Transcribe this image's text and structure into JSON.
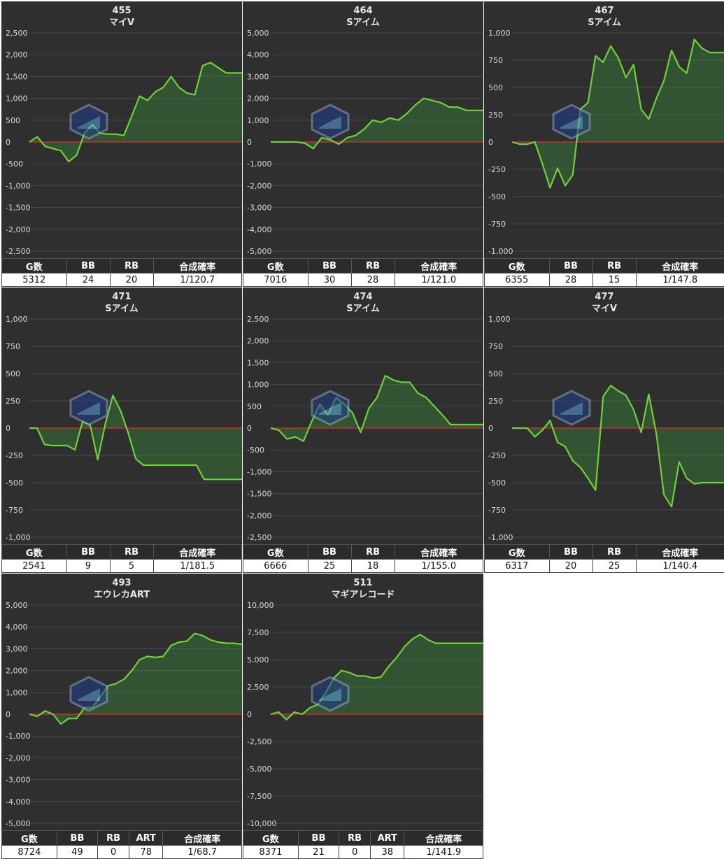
{
  "chart_data": [
    {
      "type": "area",
      "number": "455",
      "name": "マイV",
      "ylim": [
        -2500,
        2500
      ],
      "yticks": [
        2500,
        2000,
        1500,
        1000,
        500,
        0,
        -500,
        -1000,
        -1500,
        -2000,
        -2500
      ],
      "tick_labels": [
        "2,500",
        "2,000",
        "1,500",
        "1,000",
        "500",
        "0",
        "-500",
        "-1,000",
        "-1,500",
        "-2,000",
        "-2,500"
      ],
      "series": [
        {
          "values": [
            0,
            120,
            -100,
            -150,
            -200,
            -450,
            -300,
            200,
            400,
            200,
            180,
            180,
            150,
            600,
            1050,
            950,
            1150,
            1250,
            1500,
            1250,
            1120,
            1080,
            1750,
            1820,
            1700,
            1580,
            1580,
            1580
          ]
        }
      ],
      "stats_headers": [
        "G数",
        "BB",
        "RB",
        "合成確率"
      ],
      "stats_values": [
        "5312",
        "24",
        "20",
        "1/120.7"
      ]
    },
    {
      "type": "area",
      "number": "464",
      "name": "Sアイム",
      "ylim": [
        -5000,
        5000
      ],
      "yticks": [
        5000,
        4000,
        3000,
        2000,
        1000,
        0,
        -1000,
        -2000,
        -3000,
        -4000,
        -5000
      ],
      "tick_labels": [
        "5,000",
        "4,000",
        "3,000",
        "2,000",
        "1,000",
        "0",
        "-1,000",
        "-2,000",
        "-3,000",
        "-4,000",
        "-5,000"
      ],
      "series": [
        {
          "values": [
            0,
            0,
            0,
            0,
            -50,
            -300,
            200,
            100,
            -100,
            200,
            300,
            600,
            1000,
            900,
            1100,
            1000,
            1300,
            1700,
            2000,
            1900,
            1800,
            1600,
            1600,
            1450,
            1450,
            1450
          ]
        }
      ],
      "stats_headers": [
        "G数",
        "BB",
        "RB",
        "合成確率"
      ],
      "stats_values": [
        "7016",
        "30",
        "28",
        "1/121.0"
      ]
    },
    {
      "type": "area",
      "number": "467",
      "name": "Sアイム",
      "ylim": [
        -1000,
        1000
      ],
      "yticks": [
        1000,
        750,
        500,
        250,
        0,
        -250,
        -500,
        -750,
        -1000
      ],
      "tick_labels": [
        "1,000",
        "750",
        "500",
        "250",
        "0",
        "-250",
        "-500",
        "-750",
        "-1,000"
      ],
      "series": [
        {
          "values": [
            0,
            -20,
            -20,
            0,
            -200,
            -420,
            -240,
            -400,
            -300,
            300,
            360,
            790,
            730,
            880,
            770,
            590,
            710,
            300,
            210,
            400,
            560,
            840,
            690,
            630,
            940,
            860,
            820,
            820,
            820
          ]
        }
      ],
      "stats_headers": [
        "G数",
        "BB",
        "RB",
        "合成確率"
      ],
      "stats_values": [
        "6355",
        "28",
        "15",
        "1/147.8"
      ]
    },
    {
      "type": "area",
      "number": "471",
      "name": "Sアイム",
      "ylim": [
        -1000,
        1000
      ],
      "yticks": [
        1000,
        750,
        500,
        250,
        0,
        -250,
        -500,
        -750,
        -1000
      ],
      "tick_labels": [
        "1,000",
        "750",
        "500",
        "250",
        "0",
        "-250",
        "-500",
        "-750",
        "-1,000"
      ],
      "series": [
        {
          "values": [
            0,
            0,
            -150,
            -160,
            -160,
            -160,
            -200,
            60,
            30,
            -290,
            40,
            300,
            160,
            -40,
            -280,
            -340,
            -340,
            -340,
            -340,
            -340,
            -340,
            -340,
            -340,
            -470,
            -470,
            -470,
            -470,
            -470,
            -470
          ]
        }
      ],
      "stats_headers": [
        "G数",
        "BB",
        "RB",
        "合成確率"
      ],
      "stats_values": [
        "2541",
        "9",
        "5",
        "1/181.5"
      ]
    },
    {
      "type": "area",
      "number": "474",
      "name": "Sアイム",
      "ylim": [
        -2500,
        2500
      ],
      "yticks": [
        2500,
        2000,
        1500,
        1000,
        500,
        0,
        -500,
        -1000,
        -1500,
        -2000,
        -2500
      ],
      "tick_labels": [
        "2,500",
        "2,000",
        "1,500",
        "1,000",
        "500",
        "0",
        "-500",
        "-1,000",
        "-1,500",
        "-2,000",
        "-2,500"
      ],
      "series": [
        {
          "values": [
            0,
            -50,
            -250,
            -200,
            -300,
            150,
            550,
            300,
            700,
            550,
            350,
            -100,
            450,
            700,
            1200,
            1100,
            1050,
            1050,
            800,
            700,
            500,
            300,
            80,
            80,
            80,
            80,
            80
          ]
        }
      ],
      "stats_headers": [
        "G数",
        "BB",
        "RB",
        "合成確率"
      ],
      "stats_values": [
        "6666",
        "25",
        "18",
        "1/155.0"
      ]
    },
    {
      "type": "area",
      "number": "477",
      "name": "マイV",
      "ylim": [
        -1000,
        1000
      ],
      "yticks": [
        1000,
        750,
        500,
        250,
        0,
        -250,
        -500,
        -750,
        -1000
      ],
      "tick_labels": [
        "1,000",
        "750",
        "500",
        "250",
        "0",
        "-250",
        "-500",
        "-750",
        "-1,000"
      ],
      "series": [
        {
          "values": [
            0,
            0,
            0,
            -80,
            -20,
            70,
            -130,
            -170,
            -300,
            -360,
            -460,
            -570,
            290,
            390,
            340,
            300,
            170,
            -40,
            310,
            -50,
            -610,
            -720,
            -310,
            -460,
            -510,
            -500,
            -500,
            -500,
            -500
          ]
        }
      ],
      "stats_headers": [
        "G数",
        "BB",
        "RB",
        "合成確率"
      ],
      "stats_values": [
        "6317",
        "20",
        "25",
        "1/140.4"
      ]
    },
    {
      "type": "area",
      "number": "493",
      "name": "エウレカART",
      "ylim": [
        -5000,
        5000
      ],
      "yticks": [
        5000,
        4000,
        3000,
        2000,
        1000,
        0,
        -1000,
        -2000,
        -3000,
        -4000,
        -5000
      ],
      "tick_labels": [
        "5,000",
        "4,000",
        "3,000",
        "2,000",
        "1,000",
        "0",
        "-1,000",
        "-2,000",
        "-3,000",
        "-4,000",
        "-5,000"
      ],
      "series": [
        {
          "values": [
            0,
            -100,
            150,
            0,
            -450,
            -200,
            -200,
            300,
            300,
            800,
            1300,
            1400,
            1600,
            2000,
            2500,
            2650,
            2600,
            2650,
            3150,
            3300,
            3350,
            3700,
            3600,
            3400,
            3300,
            3250,
            3250,
            3200
          ]
        }
      ],
      "stats_headers": [
        "G数",
        "BB",
        "RB",
        "ART",
        "合成確率"
      ],
      "stats_values": [
        "8724",
        "49",
        "0",
        "78",
        "1/68.7"
      ]
    },
    {
      "type": "area",
      "number": "511",
      "name": "マギアレコード",
      "ylim": [
        -10000,
        10000
      ],
      "yticks": [
        10000,
        7500,
        5000,
        2500,
        0,
        -2500,
        -5000,
        -7500,
        -10000
      ],
      "tick_labels": [
        "10,000",
        "7,500",
        "5,000",
        "2,500",
        "0",
        "-2,500",
        "-5,000",
        "-7,500",
        "-10,000"
      ],
      "series": [
        {
          "values": [
            0,
            200,
            -500,
            200,
            0,
            600,
            900,
            2000,
            3300,
            4000,
            3800,
            3500,
            3500,
            3300,
            3400,
            4400,
            5200,
            6200,
            6900,
            7300,
            6800,
            6500,
            6500,
            6500,
            6500,
            6500,
            6500,
            6500
          ]
        }
      ],
      "stats_headers": [
        "G数",
        "BB",
        "RB",
        "ART",
        "合成確率"
      ],
      "stats_values": [
        "8371",
        "21",
        "0",
        "38",
        "1/141.9"
      ]
    }
  ]
}
